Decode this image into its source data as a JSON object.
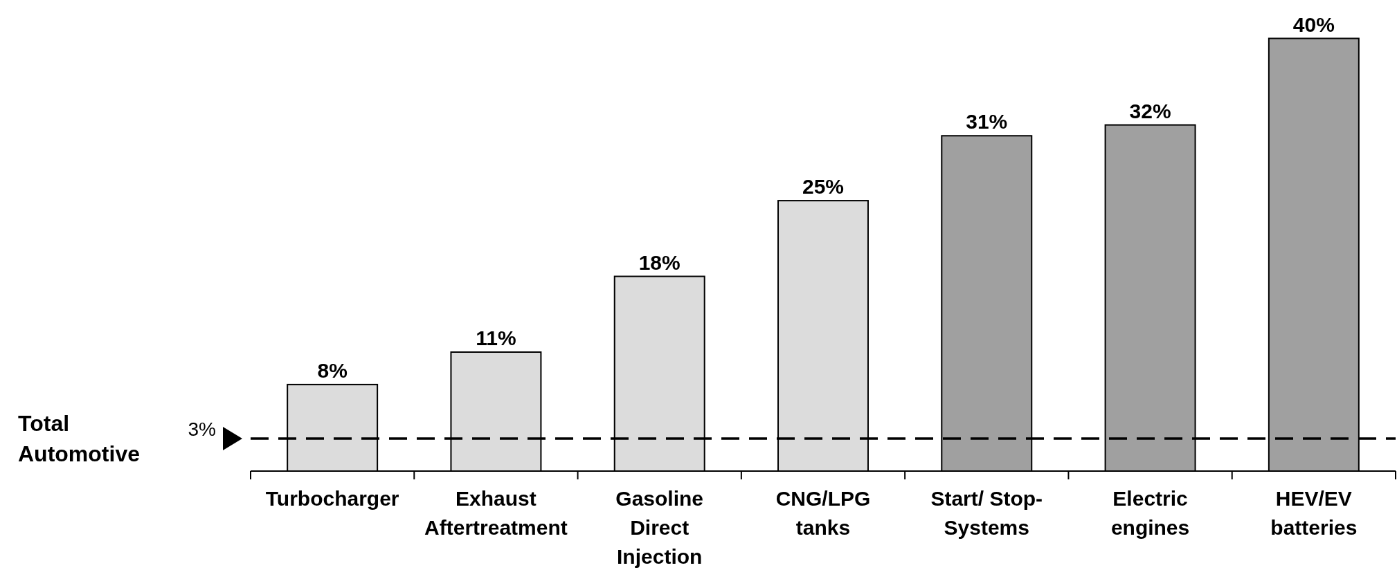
{
  "chart_data": {
    "type": "bar",
    "categories": [
      "Turbocharger",
      "Exhaust Aftertreatment",
      "Gasoline Direct Injection",
      "CNG/LPG tanks",
      "Start/ Stop-Systems",
      "Electric engines",
      "HEV/EV batteries"
    ],
    "values": [
      8,
      11,
      18,
      25,
      31,
      32,
      40
    ],
    "colors": [
      "#dcdcdc",
      "#dcdcdc",
      "#dcdcdc",
      "#dcdcdc",
      "#a0a0a0",
      "#a0a0a0",
      "#a0a0a0"
    ],
    "value_labels": [
      "8%",
      "11%",
      "18%",
      "25%",
      "31%",
      "32%",
      "40%"
    ],
    "ref_lines": [
      {
        "axis": "y",
        "value": 3,
        "label": "3%",
        "color": "#000000",
        "line_style": "dashed"
      }
    ],
    "annotations": [
      "Total Automotive"
    ]
  }
}
